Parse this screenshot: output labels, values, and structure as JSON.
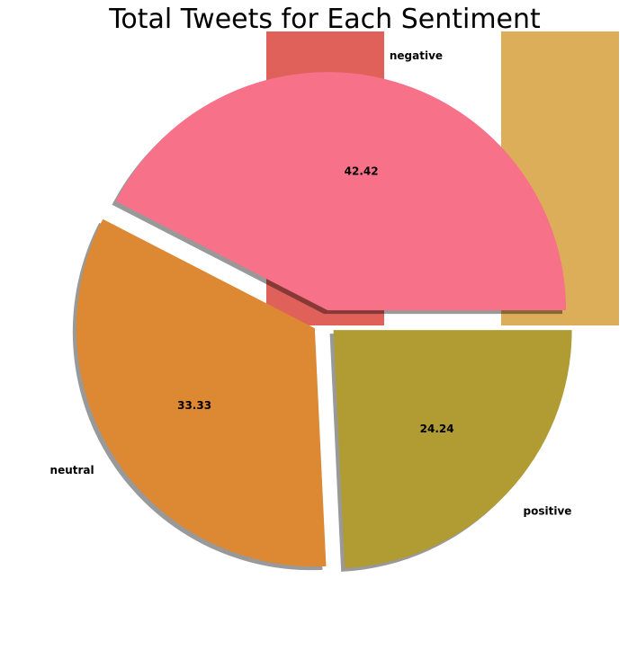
{
  "chart_data": {
    "type": "pie",
    "title": "Total Tweets for Each Sentiment",
    "slices": [
      {
        "label": "negative",
        "value": 42.42,
        "pct_label": "42.42",
        "color": "#f77189"
      },
      {
        "label": "neutral",
        "value": 33.33,
        "pct_label": "33.33",
        "color": "#dd8832"
      },
      {
        "label": "positive",
        "value": 24.24,
        "pct_label": "24.24",
        "color": "#b09c33"
      }
    ],
    "start_angle_deg": 0,
    "direction": "counterclockwise",
    "explode": 0.05,
    "shadow": true,
    "legend": "none",
    "background_bars": [
      {
        "color": "#e0605a"
      },
      {
        "color": "#dcae5a"
      }
    ]
  }
}
